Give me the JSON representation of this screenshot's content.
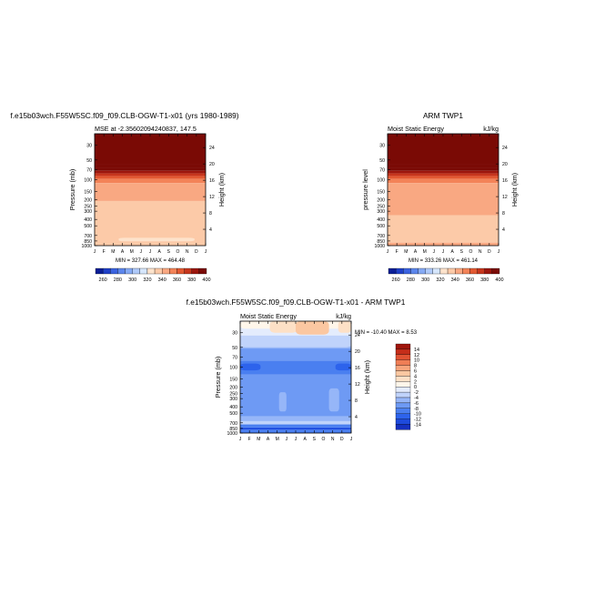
{
  "chart_data": [
    {
      "type": "heatmap",
      "title": "f.e15b03wch.F55W5SC.f09_f09.CLB-OGW-T1-x01 (yrs 1980-1989)",
      "subtitle_left": "MSE at -2.35602094240837, 147.5",
      "subtitle_right": "",
      "ylabel": "Pressure (mb)",
      "ylabel_right": "Height (km)",
      "x_ticks": [
        "J",
        "F",
        "M",
        "A",
        "M",
        "J",
        "J",
        "A",
        "S",
        "O",
        "N",
        "D",
        "J"
      ],
      "y_ticks": [
        "30",
        "50",
        "70",
        "100",
        "150",
        "200",
        "250",
        "300",
        "400",
        "500",
        "700",
        "850",
        "1000"
      ],
      "height_ticks": [
        "24",
        "20",
        "16",
        "12",
        "8",
        "4"
      ],
      "minmax_text": "MIN = 327.66  MAX = 464.48",
      "colorbar_labels": [
        "260",
        "280",
        "300",
        "320",
        "340",
        "360",
        "380",
        "400"
      ],
      "layers": [
        {
          "top_mb": 20,
          "bottom_mb": 58,
          "value": 420
        },
        {
          "top_mb": 58,
          "bottom_mb": 66,
          "value": 400
        },
        {
          "top_mb": 66,
          "bottom_mb": 73,
          "value": 390
        },
        {
          "top_mb": 73,
          "bottom_mb": 80,
          "value": 380
        },
        {
          "top_mb": 80,
          "bottom_mb": 88,
          "value": 370
        },
        {
          "top_mb": 88,
          "bottom_mb": 97,
          "value": 360
        },
        {
          "top_mb": 97,
          "bottom_mb": 112,
          "value": 350
        },
        {
          "top_mb": 112,
          "bottom_mb": 210,
          "value": 340
        },
        {
          "top_mb": 210,
          "bottom_mb": 1000,
          "value": 330
        }
      ],
      "patches": [
        {
          "x0": 2.6,
          "x1": 10.8,
          "top_mb": 760,
          "bottom_mb": 860,
          "value": 320
        }
      ]
    },
    {
      "type": "heatmap",
      "title": "ARM TWP1",
      "subtitle_left": "Moist Static Energy",
      "subtitle_right": "kJ/kg",
      "ylabel": "pressure level",
      "ylabel_right": "Height (km)",
      "x_ticks": [
        "J",
        "F",
        "M",
        "A",
        "M",
        "J",
        "J",
        "A",
        "S",
        "O",
        "N",
        "D",
        "J"
      ],
      "y_ticks": [
        "30",
        "50",
        "70",
        "100",
        "150",
        "200",
        "250",
        "300",
        "400",
        "500",
        "700",
        "850",
        "1000"
      ],
      "height_ticks": [
        "24",
        "20",
        "16",
        "12",
        "8",
        "4"
      ],
      "minmax_text": "MIN = 333.26  MAX = 461.14",
      "colorbar_labels": [
        "260",
        "280",
        "300",
        "320",
        "340",
        "360",
        "380",
        "400"
      ],
      "layers": [
        {
          "top_mb": 20,
          "bottom_mb": 58,
          "value": 420
        },
        {
          "top_mb": 58,
          "bottom_mb": 66,
          "value": 400
        },
        {
          "top_mb": 66,
          "bottom_mb": 73,
          "value": 390
        },
        {
          "top_mb": 73,
          "bottom_mb": 80,
          "value": 380
        },
        {
          "top_mb": 80,
          "bottom_mb": 88,
          "value": 370
        },
        {
          "top_mb": 88,
          "bottom_mb": 97,
          "value": 360
        },
        {
          "top_mb": 97,
          "bottom_mb": 112,
          "value": 350
        },
        {
          "top_mb": 112,
          "bottom_mb": 345,
          "value": 340
        },
        {
          "top_mb": 345,
          "bottom_mb": 900,
          "value": 330
        },
        {
          "top_mb": 900,
          "bottom_mb": 1000,
          "value": 340
        }
      ],
      "patches": []
    },
    {
      "type": "heatmap",
      "title": "f.e15b03wch.F55W5SC.f09_f09.CLB-OGW-T1-x01 - ARM TWP1",
      "subtitle_left": "Moist Static Energy",
      "subtitle_right": "kJ/kg",
      "ylabel": "Pressure (mb)",
      "ylabel_right": "Height (km)",
      "x_ticks": [
        "J",
        "F",
        "M",
        "A",
        "M",
        "J",
        "J",
        "A",
        "S",
        "O",
        "N",
        "D",
        "J"
      ],
      "y_ticks": [
        "30",
        "50",
        "70",
        "100",
        "150",
        "200",
        "250",
        "300",
        "400",
        "500",
        "700",
        "850",
        "1000"
      ],
      "height_ticks": [
        "24",
        "20",
        "16",
        "12",
        "8",
        "4"
      ],
      "minmax_text": "MIN = -10.40  MAX =   8.53",
      "colorbar_labels": [
        "14",
        "12",
        "10",
        "8",
        "6",
        "4",
        "2",
        "0",
        "-2",
        "-4",
        "-6",
        "-8",
        "-10",
        "-12",
        "-14"
      ],
      "layers": [
        {
          "top_mb": 20,
          "bottom_mb": 33,
          "value": 1
        },
        {
          "top_mb": 33,
          "bottom_mb": 43,
          "value": -1
        },
        {
          "top_mb": 43,
          "bottom_mb": 52,
          "value": -3
        },
        {
          "top_mb": 52,
          "bottom_mb": 80,
          "value": -5
        },
        {
          "top_mb": 80,
          "bottom_mb": 130,
          "value": -7
        },
        {
          "top_mb": 130,
          "bottom_mb": 560,
          "value": -5
        },
        {
          "top_mb": 560,
          "bottom_mb": 660,
          "value": -3
        },
        {
          "top_mb": 660,
          "bottom_mb": 740,
          "value": -1
        },
        {
          "top_mb": 740,
          "bottom_mb": 820,
          "value": -7
        },
        {
          "top_mb": 820,
          "bottom_mb": 900,
          "value": -9
        },
        {
          "top_mb": 900,
          "bottom_mb": 1000,
          "value": -7
        }
      ],
      "patches": [
        {
          "x0": 0.0,
          "x1": 12.0,
          "top_mb": 20,
          "bottom_mb": 26,
          "value": 3
        },
        {
          "x0": 3.2,
          "x1": 6.2,
          "top_mb": 20,
          "bottom_mb": 30,
          "value": 5
        },
        {
          "x0": 6.0,
          "x1": 9.6,
          "top_mb": 20,
          "bottom_mb": 32,
          "value": 7
        },
        {
          "x0": 10.6,
          "x1": 12.0,
          "top_mb": 20,
          "bottom_mb": 30,
          "value": 5
        },
        {
          "x0": 0.0,
          "x1": 12.0,
          "top_mb": 40,
          "bottom_mb": 50,
          "value": -1
        },
        {
          "x0": 0.0,
          "x1": 2.2,
          "top_mb": 88,
          "bottom_mb": 112,
          "value": -9
        },
        {
          "x0": 10.3,
          "x1": 12.0,
          "top_mb": 88,
          "bottom_mb": 112,
          "value": -9
        },
        {
          "x0": 4.2,
          "x1": 5.0,
          "top_mb": 240,
          "bottom_mb": 470,
          "value": -3
        },
        {
          "x0": 9.6,
          "x1": 10.7,
          "top_mb": 210,
          "bottom_mb": 470,
          "value": -3
        },
        {
          "x0": 0.0,
          "x1": 12.0,
          "top_mb": 840,
          "bottom_mb": 880,
          "value": -11
        }
      ]
    }
  ]
}
